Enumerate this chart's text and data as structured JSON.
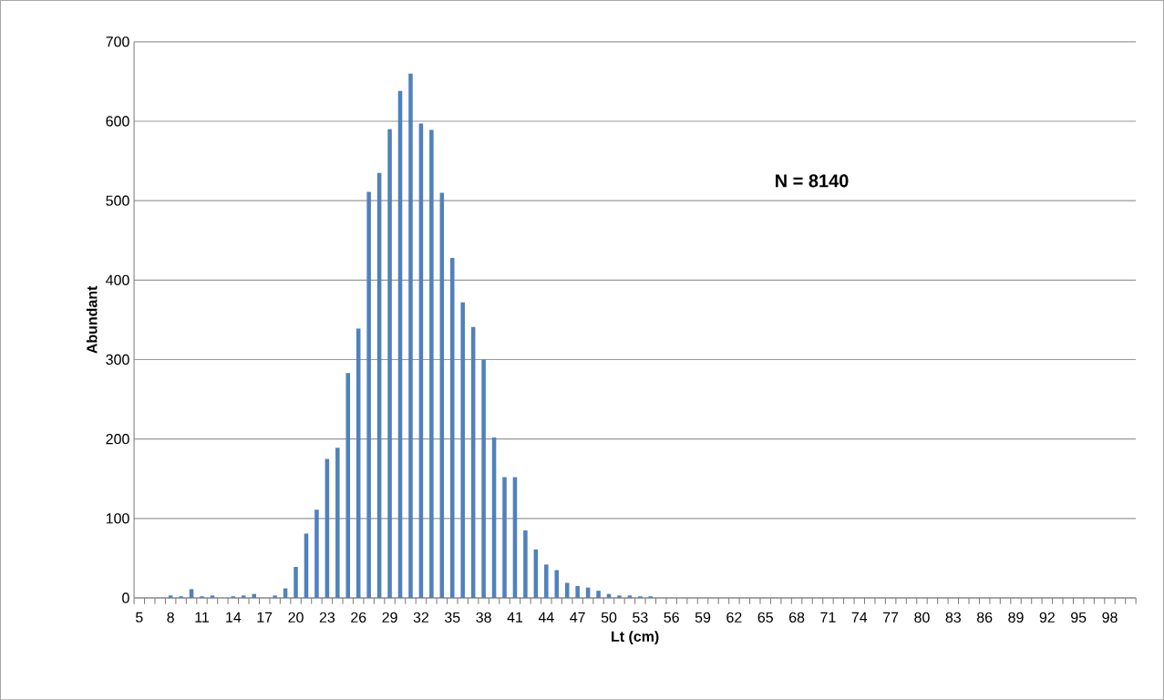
{
  "chart_data": {
    "type": "bar",
    "xlabel": "Lt (cm)",
    "ylabel": "Abundant",
    "categories": [
      "5",
      null,
      null,
      "8",
      null,
      null,
      "11",
      null,
      null,
      "14",
      null,
      null,
      "17",
      null,
      null,
      "20",
      null,
      null,
      "23",
      null,
      null,
      "26",
      null,
      null,
      "29",
      null,
      null,
      "32",
      null,
      null,
      "35",
      null,
      null,
      "38",
      null,
      null,
      "41",
      null,
      null,
      "44",
      null,
      null,
      "47",
      null,
      null,
      "50",
      null,
      null,
      "53",
      null,
      null,
      "56",
      null,
      null,
      "59",
      null,
      null,
      "62",
      null,
      null,
      "65",
      null,
      null,
      "68",
      null,
      null,
      "71",
      null,
      null,
      "74",
      null,
      null,
      "77",
      null,
      null,
      "80",
      null,
      null,
      "83",
      null,
      null,
      "86",
      null,
      null,
      "89",
      null,
      null,
      "92",
      null,
      null,
      "95",
      null,
      null,
      "98",
      null,
      null
    ],
    "values": [
      0,
      0,
      0,
      3,
      2,
      11,
      2,
      3,
      0,
      2,
      3,
      5,
      0,
      3,
      12,
      39,
      81,
      111,
      175,
      189,
      283,
      339,
      511,
      535,
      590,
      638,
      660,
      597,
      589,
      510,
      428,
      372,
      341,
      300,
      202,
      152,
      152,
      85,
      61,
      42,
      35,
      19,
      15,
      13,
      9,
      5,
      3,
      3,
      2,
      2,
      0,
      0,
      0,
      0,
      0,
      0,
      0,
      0,
      0,
      0,
      0,
      0,
      0,
      0,
      0,
      0,
      0,
      0,
      0,
      0,
      0,
      0,
      0,
      0,
      0,
      0,
      0,
      0,
      0,
      0,
      0,
      0,
      0,
      0,
      0,
      0,
      0,
      0,
      0,
      0,
      0,
      0,
      0,
      0,
      0,
      0
    ],
    "color": "#4f81bd",
    "ylim": [
      0,
      700
    ],
    "yticks": [
      0,
      100,
      200,
      300,
      400,
      500,
      600,
      700
    ],
    "grid": "y",
    "annotations": [
      "**N = 8140**"
    ]
  }
}
